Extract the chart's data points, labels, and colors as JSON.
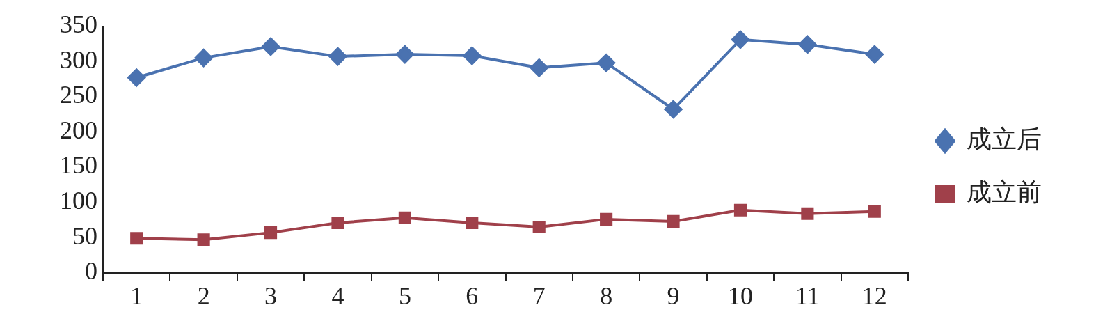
{
  "chart_data": {
    "type": "line",
    "categories": [
      "1",
      "2",
      "3",
      "4",
      "5",
      "6",
      "7",
      "8",
      "9",
      "10",
      "11",
      "12"
    ],
    "series": [
      {
        "name": "成立后",
        "color": "#4a72b0",
        "marker": "diamond",
        "values": [
          277,
          305,
          321,
          307,
          310,
          308,
          291,
          298,
          232,
          331,
          324,
          310
        ]
      },
      {
        "name": "成立前",
        "color": "#a0404a",
        "marker": "square",
        "values": [
          49,
          47,
          57,
          71,
          78,
          71,
          65,
          76,
          73,
          89,
          84,
          87
        ]
      }
    ],
    "ylim": [
      0,
      350
    ],
    "yticks": [
      0,
      50,
      100,
      150,
      200,
      250,
      300,
      350
    ],
    "grid": false,
    "legend": "right",
    "line_style": "solid"
  }
}
